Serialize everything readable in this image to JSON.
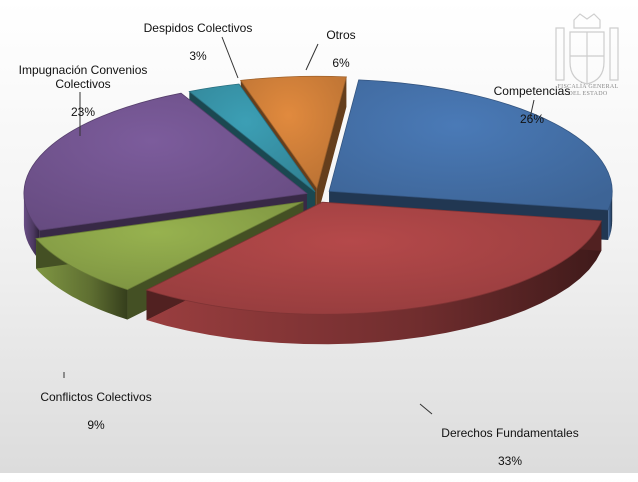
{
  "chart_data": {
    "type": "pie",
    "categories": [
      "Competencias",
      "Derechos Fundamentales",
      "Conflictos Colectivos",
      "Impugnación Convenios Colectivos",
      "Despidos Colectivos",
      "Otros"
    ],
    "values": [
      26,
      33,
      9,
      23,
      3,
      6
    ],
    "value_labels": [
      "26%",
      "33%",
      "9%",
      "23%",
      "3%",
      "6%"
    ],
    "colors": [
      "#4a7ab7",
      "#b5494a",
      "#97b24f",
      "#7c5c9c",
      "#3c9fb5",
      "#e18a3e"
    ],
    "exploded": true,
    "style": "3d",
    "legend": "none",
    "title": ""
  },
  "watermark": {
    "text": "FISCALÍA GENERAL DEL ESTADO"
  }
}
